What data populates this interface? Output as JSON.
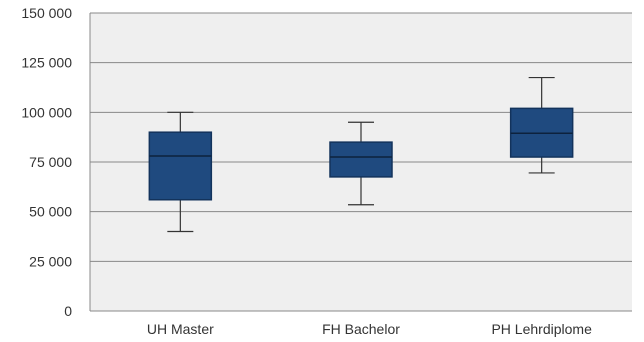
{
  "chart_data": {
    "type": "box",
    "categories": [
      "UH Master",
      "FH Bachelor",
      "PH Lehrdiplome"
    ],
    "boxes": [
      {
        "category": "UH Master",
        "min": 40000,
        "q1": 56000,
        "median": 78000,
        "q3": 90000,
        "max": 100000
      },
      {
        "category": "FH Bachelor",
        "min": 53500,
        "q1": 67500,
        "median": 77500,
        "q3": 85000,
        "max": 95000
      },
      {
        "category": "PH Lehrdiplome",
        "min": 69500,
        "q1": 77500,
        "median": 89500,
        "q3": 102000,
        "max": 117500
      }
    ],
    "y_ticks": [
      "0",
      "25 000",
      "50 000",
      "75 000",
      "100 000",
      "125 000",
      "150 000"
    ],
    "y_tick_values": [
      0,
      25000,
      50000,
      75000,
      100000,
      125000,
      150000
    ],
    "ylim": [
      0,
      150000
    ],
    "grid": true,
    "legend": "none",
    "colors": {
      "plot_background": "#efefef",
      "box_fill": "#1f4a7f",
      "box_stroke": "#13335c",
      "gridline": "#888888",
      "whisker": "#333333"
    }
  }
}
